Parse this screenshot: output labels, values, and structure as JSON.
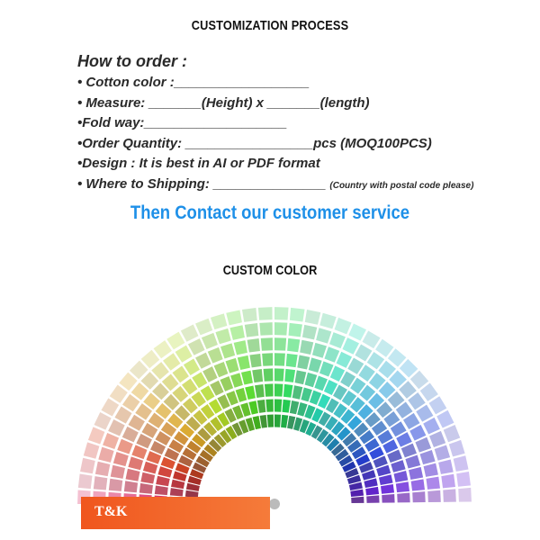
{
  "header": {
    "title": "CUSTOMIZATION PROCESS"
  },
  "order": {
    "title": "How to order :",
    "lines": [
      "• Cotton color :__________________",
      "• Measure: _______(Height) x _______(length)",
      "•Fold way:___________________",
      "•Order Quantity: _________________pcs (MOQ100PCS)",
      "•Design : It is best in AI or PDF format",
      "• Where to Shipping: _______________"
    ],
    "shipping_note": "(Country with postal code please)"
  },
  "contact": "Then Contact our customer service",
  "custom_color": {
    "title": "CUSTOM COLOR",
    "brand_label": "T&K",
    "brand_color": "#f0561e"
  }
}
